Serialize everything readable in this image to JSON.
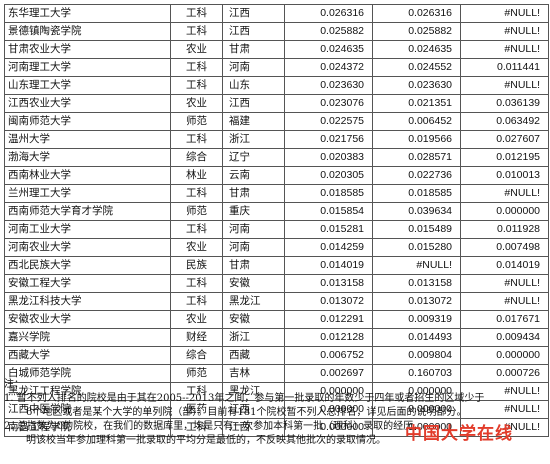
{
  "rows": [
    {
      "name": "东华理工大学",
      "type": "工科",
      "province": "江西",
      "v1": "0.026316",
      "v2": "0.026316",
      "v3": "#NULL!"
    },
    {
      "name": "景德镇陶瓷学院",
      "type": "工科",
      "province": "江西",
      "v1": "0.025882",
      "v2": "0.025882",
      "v3": "#NULL!"
    },
    {
      "name": "甘肃农业大学",
      "type": "农业",
      "province": "甘肃",
      "v1": "0.024635",
      "v2": "0.024635",
      "v3": "#NULL!"
    },
    {
      "name": "河南理工大学",
      "type": "工科",
      "province": "河南",
      "v1": "0.024372",
      "v2": "0.024552",
      "v3": "0.011441"
    },
    {
      "name": "山东理工大学",
      "type": "工科",
      "province": "山东",
      "v1": "0.023630",
      "v2": "0.023630",
      "v3": "#NULL!"
    },
    {
      "name": "江西农业大学",
      "type": "农业",
      "province": "江西",
      "v1": "0.023076",
      "v2": "0.021351",
      "v3": "0.036139"
    },
    {
      "name": "闽南师范大学",
      "type": "师范",
      "province": "福建",
      "v1": "0.022575",
      "v2": "0.006452",
      "v3": "0.063492"
    },
    {
      "name": "温州大学",
      "type": "工科",
      "province": "浙江",
      "v1": "0.021756",
      "v2": "0.019566",
      "v3": "0.027607"
    },
    {
      "name": "渤海大学",
      "type": "综合",
      "province": "辽宁",
      "v1": "0.020383",
      "v2": "0.028571",
      "v3": "0.012195"
    },
    {
      "name": "西南林业大学",
      "type": "林业",
      "province": "云南",
      "v1": "0.020305",
      "v2": "0.022736",
      "v3": "0.010013"
    },
    {
      "name": "兰州理工大学",
      "type": "工科",
      "province": "甘肃",
      "v1": "0.018585",
      "v2": "0.018585",
      "v3": "#NULL!"
    },
    {
      "name": "西南师范大学育才学院",
      "type": "师范",
      "province": "重庆",
      "v1": "0.015854",
      "v2": "0.039634",
      "v3": "0.000000"
    },
    {
      "name": "河南工业大学",
      "type": "工科",
      "province": "河南",
      "v1": "0.015281",
      "v2": "0.015489",
      "v3": "0.011928"
    },
    {
      "name": "河南农业大学",
      "type": "农业",
      "province": "河南",
      "v1": "0.014259",
      "v2": "0.015280",
      "v3": "0.007498"
    },
    {
      "name": "西北民族大学",
      "type": "民族",
      "province": "甘肃",
      "v1": "0.014019",
      "v2": "#NULL!",
      "v3": "0.014019"
    },
    {
      "name": "安徽工程大学",
      "type": "工科",
      "province": "安徽",
      "v1": "0.013158",
      "v2": "0.013158",
      "v3": "#NULL!"
    },
    {
      "name": "黑龙江科技大学",
      "type": "工科",
      "province": "黑龙江",
      "v1": "0.013072",
      "v2": "0.013072",
      "v3": "#NULL!"
    },
    {
      "name": "安徽农业大学",
      "type": "农业",
      "province": "安徽",
      "v1": "0.012291",
      "v2": "0.009319",
      "v3": "0.017671"
    },
    {
      "name": "嘉兴学院",
      "type": "财经",
      "province": "浙江",
      "v1": "0.012128",
      "v2": "0.014493",
      "v3": "0.009434"
    },
    {
      "name": "西藏大学",
      "type": "综合",
      "province": "西藏",
      "v1": "0.006752",
      "v2": "0.009804",
      "v3": "0.000000"
    },
    {
      "name": "白城师范学院",
      "type": "师范",
      "province": "吉林",
      "v1": "0.002697",
      "v2": "0.160703",
      "v3": "0.000726"
    },
    {
      "name": "黑龙江工程学院",
      "type": "工科",
      "province": "黑龙江",
      "v1": "0.000000",
      "v2": "0.000000",
      "v3": "#NULL!"
    },
    {
      "name": "江西中医学院",
      "type": "医药",
      "province": "江西",
      "v1": "0.000000",
      "v2": "0.000000",
      "v3": "#NULL!"
    },
    {
      "name": "南昌工程学院",
      "type": "工科",
      "province": "江西",
      "v1": "0.000000",
      "v2": "0.000000",
      "v3": "#NULL!"
    }
  ],
  "notes": {
    "heading": "注：",
    "note1_line1": "1. 暂不列入排名的院校是由于其在2005--2013年之间，参与第一批录取的年数少于四年或者招生的区域少于",
    "note1_line2": "6个地区或者是某个大学的单列院（部）。目前有181个院校暂不列入总排名，详见后面的说明部分。",
    "note2_line1": "2. 总指数为0的院校，在我们的数据库里，均是只有一次参加本科第一批（理科）录取的经历，",
    "note2_line2": "明该校当年参加理科第一批录取的平均分是最低的，不反映其他批次的录取情况。"
  },
  "watermark": "中国大学在线"
}
